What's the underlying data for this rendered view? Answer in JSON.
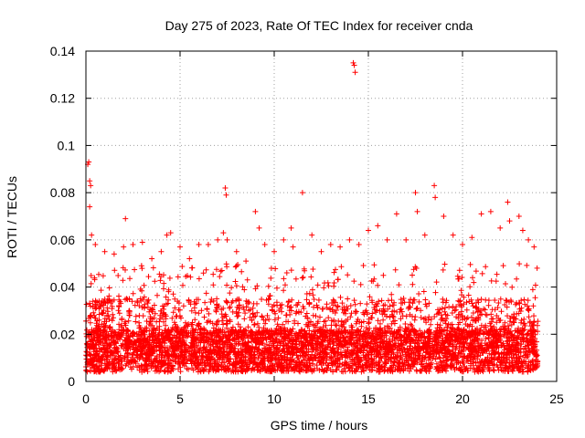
{
  "chart_data": {
    "type": "scatter",
    "title": "Day 275 of 2023, Rate Of TEC Index for receiver cnda",
    "xlabel": "GPS time / hours",
    "ylabel": "ROTI / TECUs",
    "xlim": [
      0,
      25
    ],
    "ylim": [
      0,
      0.14
    ],
    "xticks": [
      0,
      5,
      10,
      15,
      20,
      25
    ],
    "yticks": [
      0,
      0.02,
      0.04,
      0.06,
      0.08,
      0.1,
      0.12,
      0.14
    ],
    "xtick_labels": [
      "0",
      "5",
      "10",
      "15",
      "20",
      "25"
    ],
    "ytick_labels": [
      "0",
      "0.02",
      "0.04",
      "0.06",
      "0.08",
      "0.1",
      "0.12",
      "0.14"
    ],
    "grid": true,
    "marker": "+",
    "color": "#ff0000",
    "series": [
      {
        "name": "",
        "points": [
          [
            0.1,
            0.092
          ],
          [
            0.15,
            0.093
          ],
          [
            0.2,
            0.085
          ],
          [
            0.25,
            0.083
          ],
          [
            0.2,
            0.074
          ],
          [
            0.3,
            0.062
          ],
          [
            0.5,
            0.058
          ],
          [
            1.0,
            0.055
          ],
          [
            1.5,
            0.054
          ],
          [
            2.0,
            0.057
          ],
          [
            2.1,
            0.069
          ],
          [
            2.5,
            0.058
          ],
          [
            3.0,
            0.059
          ],
          [
            3.5,
            0.052
          ],
          [
            4.0,
            0.055
          ],
          [
            4.3,
            0.062
          ],
          [
            4.5,
            0.063
          ],
          [
            5.0,
            0.057
          ],
          [
            5.5,
            0.052
          ],
          [
            6.0,
            0.058
          ],
          [
            6.5,
            0.058
          ],
          [
            7.0,
            0.06
          ],
          [
            7.3,
            0.063
          ],
          [
            7.4,
            0.082
          ],
          [
            7.45,
            0.079
          ],
          [
            7.5,
            0.06
          ],
          [
            8.0,
            0.055
          ],
          [
            8.5,
            0.051
          ],
          [
            9.0,
            0.072
          ],
          [
            9.2,
            0.065
          ],
          [
            9.5,
            0.058
          ],
          [
            10.0,
            0.055
          ],
          [
            10.5,
            0.06
          ],
          [
            10.9,
            0.065
          ],
          [
            11.0,
            0.057
          ],
          [
            11.5,
            0.08
          ],
          [
            12.0,
            0.062
          ],
          [
            12.5,
            0.055
          ],
          [
            13.0,
            0.058
          ],
          [
            13.5,
            0.057
          ],
          [
            14.0,
            0.06
          ],
          [
            14.2,
            0.135
          ],
          [
            14.25,
            0.134
          ],
          [
            14.3,
            0.131
          ],
          [
            14.5,
            0.058
          ],
          [
            15.0,
            0.064
          ],
          [
            15.5,
            0.066
          ],
          [
            16.0,
            0.06
          ],
          [
            16.5,
            0.071
          ],
          [
            17.0,
            0.06
          ],
          [
            17.5,
            0.08
          ],
          [
            17.6,
            0.072
          ],
          [
            18.0,
            0.062
          ],
          [
            18.5,
            0.083
          ],
          [
            18.55,
            0.078
          ],
          [
            19.0,
            0.07
          ],
          [
            19.5,
            0.062
          ],
          [
            20.0,
            0.058
          ],
          [
            20.5,
            0.061
          ],
          [
            21.0,
            0.071
          ],
          [
            21.5,
            0.072
          ],
          [
            22.0,
            0.065
          ],
          [
            22.4,
            0.076
          ],
          [
            22.5,
            0.068
          ],
          [
            23.0,
            0.07
          ],
          [
            23.2,
            0.064
          ],
          [
            23.5,
            0.06
          ],
          [
            23.8,
            0.057
          ]
        ]
      }
    ],
    "noise_band": {
      "x_from": 0,
      "x_to": 24,
      "y_low": 0.004,
      "y_high": 0.035
    }
  }
}
